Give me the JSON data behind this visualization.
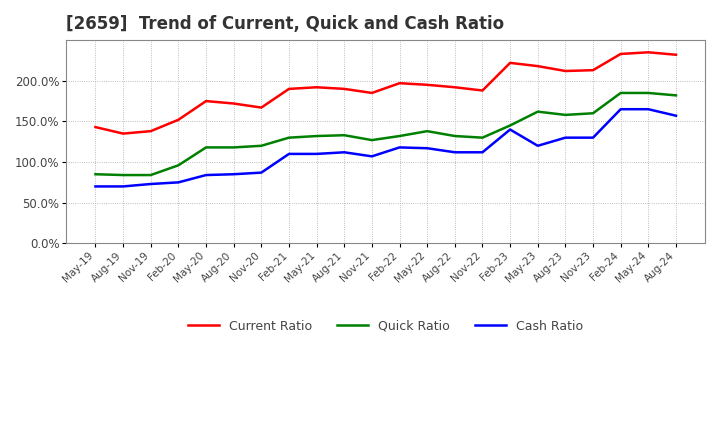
{
  "title": "[2659]  Trend of Current, Quick and Cash Ratio",
  "title_fontsize": 12,
  "legend_labels": [
    "Current Ratio",
    "Quick Ratio",
    "Cash Ratio"
  ],
  "line_colors": [
    "#ff0000",
    "#008000",
    "#0000ff"
  ],
  "dates": [
    "May-19",
    "Aug-19",
    "Nov-19",
    "Feb-20",
    "May-20",
    "Aug-20",
    "Nov-20",
    "Feb-21",
    "May-21",
    "Aug-21",
    "Nov-21",
    "Feb-22",
    "May-22",
    "Aug-22",
    "Nov-22",
    "Feb-23",
    "May-23",
    "Aug-23",
    "Nov-23",
    "Feb-24",
    "May-24",
    "Aug-24"
  ],
  "current_ratio": [
    1.43,
    1.35,
    1.38,
    1.52,
    1.75,
    1.72,
    1.67,
    1.9,
    1.92,
    1.9,
    1.85,
    1.97,
    1.95,
    1.92,
    1.88,
    2.22,
    2.18,
    2.12,
    2.13,
    2.33,
    2.35,
    2.32
  ],
  "quick_ratio": [
    0.85,
    0.84,
    0.84,
    0.96,
    1.18,
    1.18,
    1.2,
    1.3,
    1.32,
    1.33,
    1.27,
    1.32,
    1.38,
    1.32,
    1.3,
    1.45,
    1.62,
    1.58,
    1.6,
    1.85,
    1.85,
    1.82
  ],
  "cash_ratio": [
    0.7,
    0.7,
    0.73,
    0.75,
    0.84,
    0.85,
    0.87,
    1.1,
    1.1,
    1.12,
    1.07,
    1.18,
    1.17,
    1.12,
    1.12,
    1.4,
    1.2,
    1.3,
    1.3,
    1.65,
    1.65,
    1.57
  ],
  "background_color": "#ffffff",
  "grid_color": "#aaaaaa",
  "tick_label_color": "#444444",
  "yticks": [
    0.0,
    0.5,
    1.0,
    1.5,
    2.0
  ],
  "ytick_labels": [
    "0.0%",
    "50.0%",
    "100.0%",
    "150.0%",
    "200.0%"
  ],
  "ylim": [
    0.0,
    2.5
  ]
}
